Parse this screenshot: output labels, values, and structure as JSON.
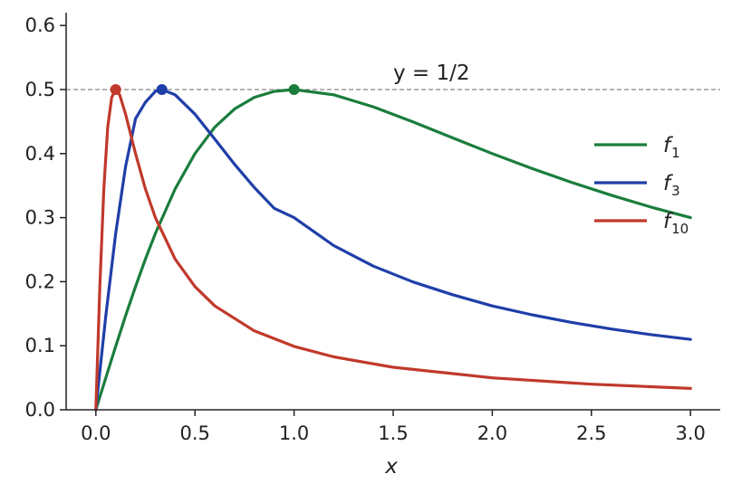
{
  "chart_data": {
    "type": "line",
    "title": "",
    "xlabel": "x",
    "ylabel": "",
    "xlim": [
      -0.15,
      3.15
    ],
    "ylim": [
      0,
      0.62
    ],
    "xticks": [
      0.0,
      0.5,
      1.0,
      1.5,
      2.0,
      2.5,
      3.0
    ],
    "xtick_labels": [
      "0.0",
      "0.5",
      "1.0",
      "1.5",
      "2.0",
      "2.5",
      "3.0"
    ],
    "yticks": [
      0.0,
      0.1,
      0.2,
      0.3,
      0.4,
      0.5,
      0.6
    ],
    "ytick_labels": [
      "0.0",
      "0.1",
      "0.2",
      "0.3",
      "0.4",
      "0.5",
      "0.6"
    ],
    "grid": false,
    "legend_position": "right",
    "reference_line": {
      "y": 0.5,
      "label_main": "y = 1/2",
      "x_label_at": 1.5,
      "color": "#888888"
    },
    "series": [
      {
        "name": "f",
        "sub": "1",
        "color": "#1a7d3c",
        "x": [
          0,
          0.02,
          0.05,
          0.1,
          0.15,
          0.2,
          0.25,
          0.3,
          0.4,
          0.5,
          0.6,
          0.7,
          0.8,
          0.9,
          1.0,
          1.2,
          1.4,
          1.6,
          1.8,
          2.0,
          2.2,
          2.4,
          2.6,
          2.8,
          3.0
        ],
        "y": [
          0,
          0.02,
          0.0499,
          0.099,
          0.1467,
          0.1923,
          0.2353,
          0.2752,
          0.3448,
          0.4,
          0.4412,
          0.4698,
          0.4878,
          0.4972,
          0.5,
          0.4918,
          0.473,
          0.4494,
          0.4245,
          0.4,
          0.3767,
          0.355,
          0.335,
          0.3165,
          0.3
        ],
        "peak": [
          1.0,
          0.5
        ]
      },
      {
        "name": "f",
        "sub": "3",
        "color": "#1f3ea8",
        "x": [
          0,
          0.02,
          0.05,
          0.1,
          0.15,
          0.2,
          0.25,
          0.3,
          0.3333,
          0.4,
          0.5,
          0.6,
          0.7,
          0.8,
          0.9,
          1.0,
          1.2,
          1.4,
          1.6,
          1.8,
          2.0,
          2.2,
          2.4,
          2.6,
          2.8,
          3.0
        ],
        "y": [
          0,
          0.0597,
          0.1468,
          0.2752,
          0.3796,
          0.4545,
          0.48,
          0.4972,
          0.5,
          0.4918,
          0.4615,
          0.4225,
          0.3832,
          0.3468,
          0.3145,
          0.3,
          0.2564,
          0.2243,
          0.1996,
          0.1797,
          0.1622,
          0.1483,
          0.1364,
          0.1261,
          0.1173,
          0.1099
        ],
        "peak": [
          0.3333,
          0.5
        ]
      },
      {
        "name": "f",
        "sub": "10",
        "color": "#c0392b",
        "x": [
          0,
          0.02,
          0.04,
          0.06,
          0.08,
          0.1,
          0.12,
          0.15,
          0.2,
          0.25,
          0.3,
          0.4,
          0.5,
          0.6,
          0.8,
          1.0,
          1.2,
          1.5,
          2.0,
          2.5,
          3.0
        ],
        "y": [
          0,
          0.1923,
          0.3448,
          0.4412,
          0.4878,
          0.5,
          0.4918,
          0.4615,
          0.4,
          0.3448,
          0.3,
          0.2353,
          0.1923,
          0.1622,
          0.1231,
          0.099,
          0.0826,
          0.0664,
          0.0499,
          0.04,
          0.0333
        ],
        "peak": [
          0.1,
          0.5
        ]
      }
    ]
  }
}
